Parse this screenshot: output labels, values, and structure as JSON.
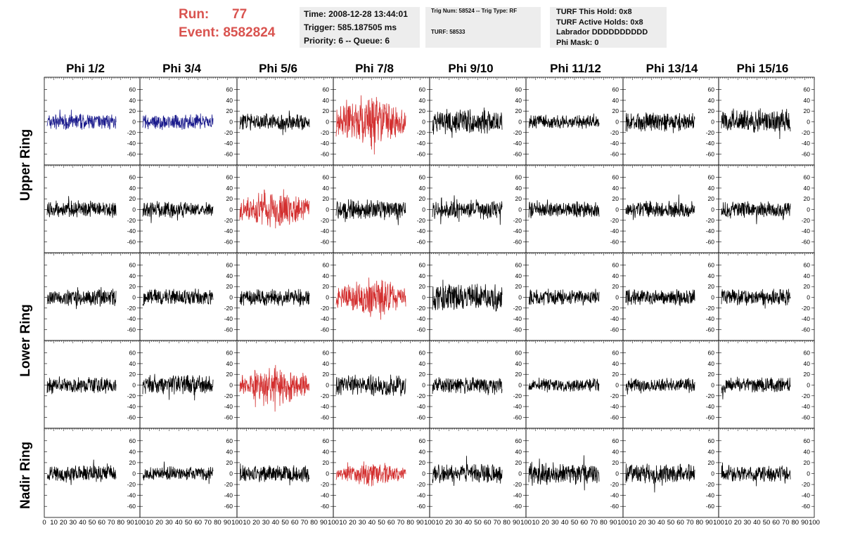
{
  "header": {
    "run_label": "Run:",
    "run_value": "77",
    "event_label": "Event:",
    "event_value": "8582824",
    "accent_color": "#d9534f"
  },
  "box_time": {
    "time": "Time: 2008-12-28 13:44:01",
    "trigger": "Trigger: 585.187505 ms",
    "priority": "Priority: 6 -- Queue: 6"
  },
  "box_trig": {
    "trig_line": "Trig Num: 58524 -- Trig Type: RF",
    "turf_line": "TURF: 58533"
  },
  "box_turf": {
    "this_hold": "TURF This Hold: 0x8",
    "active_holds": "TURF Active Holds: 0x8",
    "labrador": "Labrador DDDDDDDDDD",
    "phi_mask": "Phi Mask: 0"
  },
  "columns": [
    "Phi 1/2",
    "Phi 3/4",
    "Phi 5/6",
    "Phi 7/8",
    "Phi 9/10",
    "Phi 11/12",
    "Phi 13/14",
    "Phi 15/16"
  ],
  "rows": [
    "Upper Ring",
    "Lower Ring",
    "Nadir Ring"
  ],
  "chart_data": {
    "type": "line",
    "grid_rows": 5,
    "grid_cols": 8,
    "ylim": [
      -70,
      70
    ],
    "yticks": [
      -60,
      -40,
      -20,
      0,
      20,
      40,
      60
    ],
    "xlim": [
      0,
      100
    ],
    "xticks": [
      0,
      10,
      20,
      30,
      40,
      50,
      60,
      70,
      80,
      90,
      100
    ],
    "colors": {
      "normal": "#000000",
      "highlight": "#d32f2f",
      "blue": "#1a1a8c"
    },
    "highlight_cells": [
      [
        0,
        3
      ],
      [
        1,
        2
      ],
      [
        2,
        3
      ],
      [
        3,
        2
      ],
      [
        4,
        3
      ]
    ],
    "blue_cells": [
      [
        0,
        0
      ],
      [
        0,
        1
      ]
    ],
    "amplitudes": [
      [
        12,
        12,
        12,
        28,
        18,
        10,
        14,
        18
      ],
      [
        12,
        12,
        20,
        15,
        14,
        12,
        12,
        12
      ],
      [
        12,
        12,
        12,
        20,
        20,
        12,
        12,
        12
      ],
      [
        12,
        14,
        20,
        16,
        12,
        10,
        10,
        12
      ],
      [
        12,
        10,
        12,
        12,
        14,
        16,
        14,
        12
      ]
    ],
    "samples_per_trace": 260
  }
}
